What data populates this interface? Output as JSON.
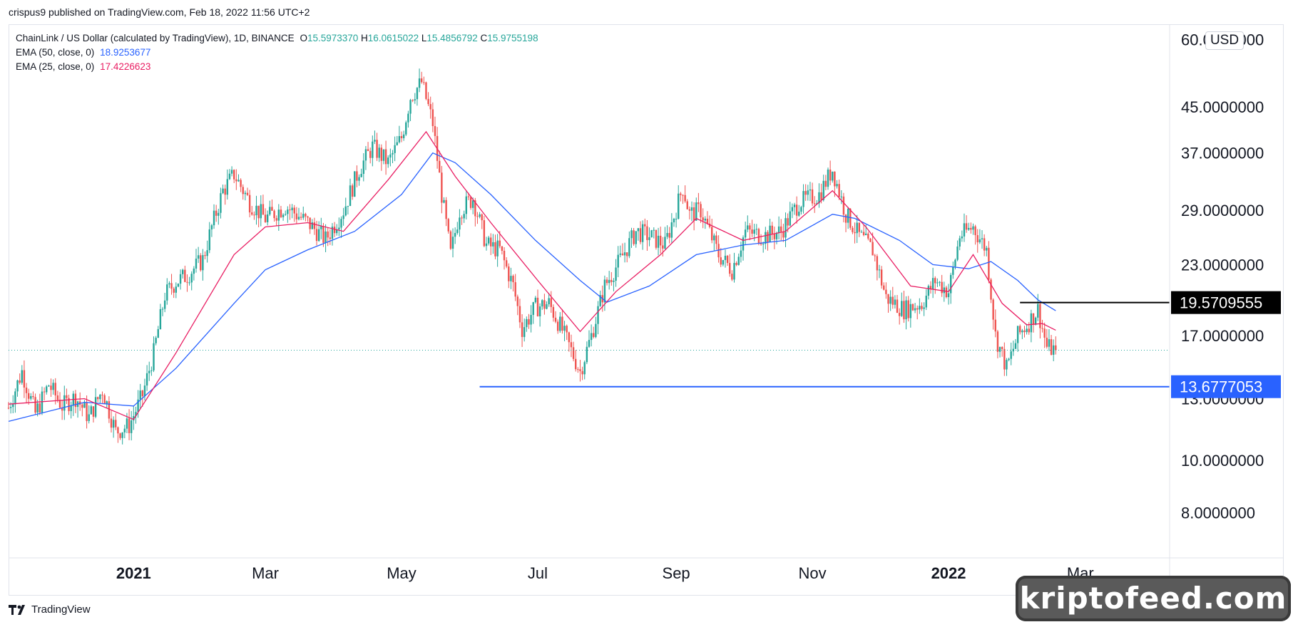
{
  "header": {
    "published": "crispus9 published on TradingView.com, Feb 18, 2022 11:56 UTC+2"
  },
  "legend": {
    "symbol": "ChainLink / US Dollar (calculated by TradingView), 1D, BINANCE",
    "o_label": "O",
    "o": "15.5973370",
    "h_label": "H",
    "h": "16.0615022",
    "l_label": "L",
    "l": "15.4856792",
    "c_label": "C",
    "c": "15.9755198",
    "ema50_label": "EMA (50, close, 0)",
    "ema50": "18.9253677",
    "ema25_label": "EMA (25, close, 0)",
    "ema25": "17.4226623"
  },
  "currency": "USD",
  "footer": {
    "logo_text": "TradingView"
  },
  "watermark": "kriptofeed.com",
  "chart_data": {
    "type": "candlestick",
    "symbol": "LINK/USD",
    "scale": "log",
    "y_ticks": [
      "60.0000000",
      "45.0000000",
      "37.0000000",
      "29.0000000",
      "23.0000000",
      "17.0000000",
      "13.0000000",
      "10.0000000",
      "8.0000000"
    ],
    "y_tick_values": [
      60,
      45,
      37,
      29,
      23,
      17,
      13,
      10,
      8
    ],
    "x_ticks": [
      {
        "label": "2021",
        "date": "2021-01-01",
        "bold": true
      },
      {
        "label": "Mar",
        "date": "2021-03-01",
        "bold": false
      },
      {
        "label": "May",
        "date": "2021-05-01",
        "bold": false
      },
      {
        "label": "Jul",
        "date": "2021-07-01",
        "bold": false
      },
      {
        "label": "Sep",
        "date": "2021-09-01",
        "bold": false
      },
      {
        "label": "Nov",
        "date": "2021-11-01",
        "bold": false
      },
      {
        "label": "2022",
        "date": "2022-01-01",
        "bold": true
      },
      {
        "label": "Mar",
        "date": "2022-03-01",
        "bold": false
      }
    ],
    "x_range": [
      "2020-11-06",
      "2022-04-10"
    ],
    "y_range": [
      6.6,
      64
    ],
    "price_labels": [
      {
        "label": "19.5709555",
        "value": 19.57,
        "color": "#000000"
      },
      {
        "label": "13.6777053",
        "value": 13.68,
        "color": "#2962ff"
      }
    ],
    "horizontal_lines": [
      {
        "value": 13.68,
        "from": "2021-06-05",
        "to": "2022-04-10",
        "color": "#2962ff"
      },
      {
        "value": 19.57,
        "from": "2022-02-02",
        "to": "2022-04-10",
        "color": "#000000"
      }
    ],
    "last_close": 15.98,
    "colors": {
      "up": "#26a69a",
      "down": "#ef5350",
      "ema50": "#2962ff",
      "ema25": "#e91e63"
    },
    "price_path": [
      [
        "2020-11-06",
        12.5
      ],
      [
        "2020-11-12",
        14.6
      ],
      [
        "2020-11-18",
        12.2
      ],
      [
        "2020-11-24",
        13.8
      ],
      [
        "2020-11-30",
        12.6
      ],
      [
        "2020-12-06",
        13.1
      ],
      [
        "2020-12-12",
        12.0
      ],
      [
        "2020-12-18",
        13.5
      ],
      [
        "2020-12-24",
        11.3
      ],
      [
        "2020-12-30",
        11.6
      ],
      [
        "2021-01-05",
        13.2
      ],
      [
        "2021-01-10",
        15.8
      ],
      [
        "2021-01-15",
        20.2
      ],
      [
        "2021-01-20",
        21.4
      ],
      [
        "2021-01-25",
        22.0
      ],
      [
        "2021-02-01",
        23.5
      ],
      [
        "2021-02-05",
        27.0
      ],
      [
        "2021-02-10",
        31.5
      ],
      [
        "2021-02-15",
        33.8
      ],
      [
        "2021-02-22",
        30.0
      ],
      [
        "2021-03-01",
        28.0
      ],
      [
        "2021-03-10",
        29.5
      ],
      [
        "2021-03-20",
        27.5
      ],
      [
        "2021-03-28",
        25.6
      ],
      [
        "2021-04-05",
        29.0
      ],
      [
        "2021-04-12",
        34.5
      ],
      [
        "2021-04-18",
        38.0
      ],
      [
        "2021-04-25",
        35.5
      ],
      [
        "2021-05-01",
        39.5
      ],
      [
        "2021-05-05",
        47.0
      ],
      [
        "2021-05-10",
        50.0
      ],
      [
        "2021-05-15",
        42.0
      ],
      [
        "2021-05-19",
        31.0
      ],
      [
        "2021-05-23",
        24.0
      ],
      [
        "2021-05-27",
        29.0
      ],
      [
        "2021-06-02",
        30.5
      ],
      [
        "2021-06-08",
        25.0
      ],
      [
        "2021-06-14",
        24.5
      ],
      [
        "2021-06-20",
        21.0
      ],
      [
        "2021-06-24",
        17.5
      ],
      [
        "2021-06-30",
        19.2
      ],
      [
        "2021-07-06",
        19.5
      ],
      [
        "2021-07-12",
        17.4
      ],
      [
        "2021-07-20",
        14.6
      ],
      [
        "2021-07-25",
        17.0
      ],
      [
        "2021-07-31",
        21.0
      ],
      [
        "2021-08-07",
        23.5
      ],
      [
        "2021-08-14",
        26.5
      ],
      [
        "2021-08-20",
        26.0
      ],
      [
        "2021-08-27",
        25.0
      ],
      [
        "2021-09-04",
        32.0
      ],
      [
        "2021-09-07",
        28.5
      ],
      [
        "2021-09-12",
        29.0
      ],
      [
        "2021-09-20",
        24.0
      ],
      [
        "2021-09-26",
        22.5
      ],
      [
        "2021-10-02",
        26.5
      ],
      [
        "2021-10-10",
        26.0
      ],
      [
        "2021-10-18",
        26.5
      ],
      [
        "2021-10-26",
        30.0
      ],
      [
        "2021-11-04",
        31.0
      ],
      [
        "2021-11-10",
        34.5
      ],
      [
        "2021-11-16",
        28.5
      ],
      [
        "2021-11-22",
        26.0
      ],
      [
        "2021-11-28",
        24.5
      ],
      [
        "2021-12-04",
        20.0
      ],
      [
        "2021-12-12",
        19.0
      ],
      [
        "2021-12-20",
        19.5
      ],
      [
        "2021-12-26",
        21.5
      ],
      [
        "2022-01-01",
        20.5
      ],
      [
        "2022-01-06",
        26.0
      ],
      [
        "2022-01-12",
        27.0
      ],
      [
        "2022-01-18",
        24.5
      ],
      [
        "2022-01-22",
        17.0
      ],
      [
        "2022-01-27",
        14.8
      ],
      [
        "2022-02-01",
        17.0
      ],
      [
        "2022-02-06",
        18.0
      ],
      [
        "2022-02-10",
        19.0
      ],
      [
        "2022-02-14",
        16.2
      ],
      [
        "2022-02-18",
        15.98
      ]
    ],
    "ema50_path": [
      [
        "2020-11-06",
        11.8
      ],
      [
        "2020-12-10",
        12.8
      ],
      [
        "2021-01-01",
        12.6
      ],
      [
        "2021-01-20",
        14.8
      ],
      [
        "2021-02-15",
        19.5
      ],
      [
        "2021-03-01",
        22.5
      ],
      [
        "2021-03-20",
        24.5
      ],
      [
        "2021-04-10",
        26.5
      ],
      [
        "2021-05-01",
        31.0
      ],
      [
        "2021-05-15",
        37.0
      ],
      [
        "2021-05-25",
        35.5
      ],
      [
        "2021-06-10",
        31.0
      ],
      [
        "2021-06-30",
        25.5
      ],
      [
        "2021-07-20",
        21.5
      ],
      [
        "2021-08-01",
        19.6
      ],
      [
        "2021-08-20",
        21.0
      ],
      [
        "2021-09-10",
        24.0
      ],
      [
        "2021-10-01",
        25.0
      ],
      [
        "2021-10-20",
        25.5
      ],
      [
        "2021-11-10",
        28.5
      ],
      [
        "2021-11-20",
        28.0
      ],
      [
        "2021-12-10",
        25.5
      ],
      [
        "2021-12-25",
        23.0
      ],
      [
        "2022-01-10",
        22.6
      ],
      [
        "2022-01-20",
        23.3
      ],
      [
        "2022-02-01",
        21.5
      ],
      [
        "2022-02-10",
        19.8
      ],
      [
        "2022-02-18",
        18.9
      ]
    ],
    "ema25_path": [
      [
        "2020-11-06",
        12.7
      ],
      [
        "2020-12-10",
        13.0
      ],
      [
        "2021-01-01",
        11.9
      ],
      [
        "2021-01-20",
        15.8
      ],
      [
        "2021-02-15",
        24.0
      ],
      [
        "2021-03-01",
        27.0
      ],
      [
        "2021-03-20",
        27.5
      ],
      [
        "2021-04-05",
        26.5
      ],
      [
        "2021-04-25",
        33.0
      ],
      [
        "2021-05-12",
        40.5
      ],
      [
        "2021-05-25",
        33.5
      ],
      [
        "2021-06-10",
        27.5
      ],
      [
        "2021-07-01",
        21.5
      ],
      [
        "2021-07-20",
        17.3
      ],
      [
        "2021-08-05",
        20.5
      ],
      [
        "2021-08-25",
        24.0
      ],
      [
        "2021-09-10",
        28.0
      ],
      [
        "2021-10-01",
        25.5
      ],
      [
        "2021-10-20",
        26.5
      ],
      [
        "2021-11-10",
        31.5
      ],
      [
        "2021-11-25",
        27.0
      ],
      [
        "2021-12-15",
        21.0
      ],
      [
        "2022-01-01",
        20.5
      ],
      [
        "2022-01-12",
        24.0
      ],
      [
        "2022-01-25",
        19.5
      ],
      [
        "2022-02-05",
        17.8
      ],
      [
        "2022-02-12",
        17.9
      ],
      [
        "2022-02-18",
        17.4
      ]
    ]
  }
}
